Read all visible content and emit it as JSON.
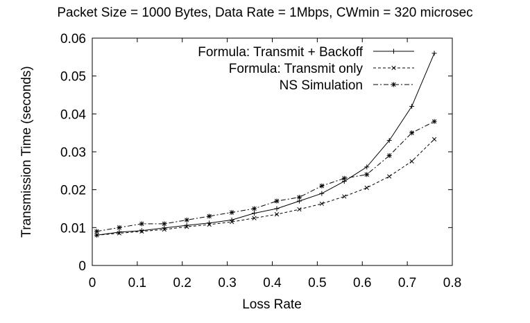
{
  "chart_data": {
    "type": "line",
    "title": "Packet Size = 1000 Bytes, Data Rate = 1Mbps, CWmin = 320 microsec",
    "xlabel": "Loss Rate",
    "ylabel": "Transmission Time (seconds)",
    "xlim": [
      0,
      0.8
    ],
    "ylim": [
      0,
      0.06
    ],
    "xticks": [
      "0",
      "0.1",
      "0.2",
      "0.3",
      "0.4",
      "0.5",
      "0.6",
      "0.7",
      "0.8"
    ],
    "yticks": [
      "0",
      "0.01",
      "0.02",
      "0.03",
      "0.04",
      "0.05",
      "0.06"
    ],
    "grid": false,
    "legend_position": "top-right",
    "x": [
      0.01,
      0.06,
      0.11,
      0.16,
      0.21,
      0.26,
      0.31,
      0.36,
      0.41,
      0.46,
      0.51,
      0.56,
      0.61,
      0.66,
      0.71,
      0.76
    ],
    "series": [
      {
        "name": "Formula: Transmit + Backoff",
        "line": "solid",
        "marker": "plus",
        "values": [
          0.008,
          0.0088,
          0.0092,
          0.0099,
          0.0106,
          0.0112,
          0.012,
          0.0138,
          0.015,
          0.017,
          0.019,
          0.0222,
          0.026,
          0.033,
          0.042,
          0.056
        ]
      },
      {
        "name": "Formula: Transmit only",
        "line": "dashed",
        "marker": "cross",
        "values": [
          0.008,
          0.0085,
          0.009,
          0.0095,
          0.0102,
          0.0108,
          0.0115,
          0.0125,
          0.0135,
          0.0148,
          0.0163,
          0.0182,
          0.0205,
          0.0235,
          0.0275,
          0.0333
        ]
      },
      {
        "name": "NS Simulation",
        "line": "dashdot",
        "marker": "star",
        "values": [
          0.009,
          0.01,
          0.011,
          0.011,
          0.012,
          0.013,
          0.014,
          0.015,
          0.017,
          0.018,
          0.021,
          0.023,
          0.024,
          0.029,
          0.035,
          0.038
        ]
      }
    ]
  }
}
